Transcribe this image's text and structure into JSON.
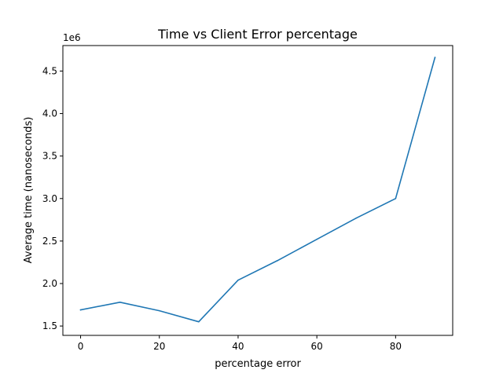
{
  "chart_data": {
    "type": "line",
    "title": "Time vs Client Error percentage",
    "xlabel": "percentage error",
    "ylabel": "Average time (nanoseconds)",
    "y_offset_label": "1e6",
    "xlim": [
      -4.5,
      94.5
    ],
    "ylim": [
      1.39,
      4.8
    ],
    "x_ticks": [
      0,
      20,
      40,
      60,
      80
    ],
    "x_tick_labels": [
      "0",
      "20",
      "40",
      "60",
      "80"
    ],
    "y_ticks": [
      1.5,
      2.0,
      2.5,
      3.0,
      3.5,
      4.0,
      4.5
    ],
    "y_tick_labels": [
      "1.5",
      "2.0",
      "2.5",
      "3.0",
      "3.5",
      "4.0",
      "4.5"
    ],
    "grid": false,
    "series": [
      {
        "color": "#1f77b4",
        "x": [
          0,
          10,
          20,
          30,
          40,
          50,
          60,
          70,
          80,
          90
        ],
        "y": [
          1.69,
          1.78,
          1.68,
          1.55,
          2.04,
          2.27,
          2.52,
          2.77,
          3.0,
          4.66
        ]
      }
    ]
  }
}
